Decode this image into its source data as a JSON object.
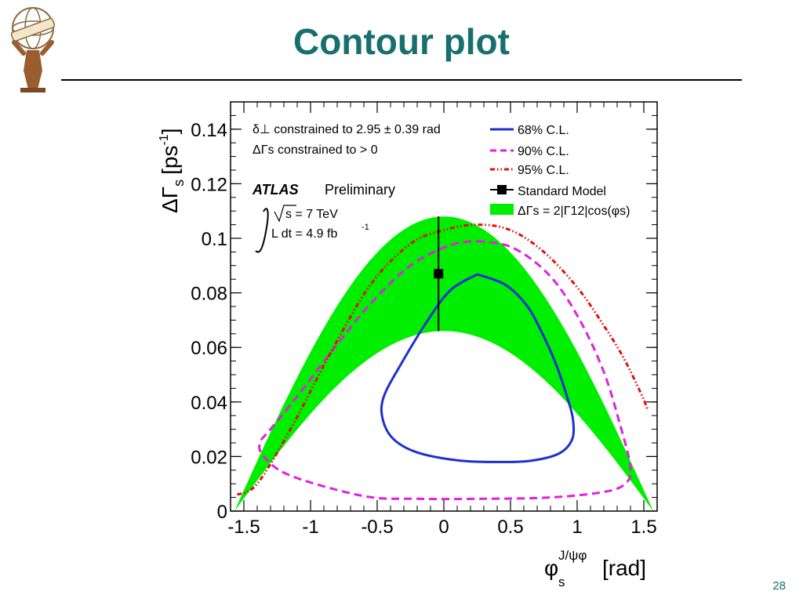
{
  "slide": {
    "title": "Contour plot",
    "page_number": "28",
    "logo_text": "ATLAS"
  },
  "chart_data": {
    "type": "line",
    "xlim": [
      -1.6,
      1.6
    ],
    "ylim": [
      0,
      0.15
    ],
    "x_ticks": [
      "-1.5",
      "-1",
      "-0.5",
      "0",
      "0.5",
      "1",
      "1.5"
    ],
    "x_tick_values": [
      -1.5,
      -1,
      -0.5,
      0,
      0.5,
      1,
      1.5
    ],
    "y_ticks": [
      "0",
      "0.02",
      "0.04",
      "0.06",
      "0.08",
      "0.1",
      "0.12",
      "0.14"
    ],
    "y_tick_values": [
      0,
      0.02,
      0.04,
      0.06,
      0.08,
      0.1,
      0.12,
      0.14
    ],
    "xlabel": {
      "main": "φ",
      "sup": "J/ψφ",
      "sub": "s",
      "unit": "[rad]"
    },
    "ylabel": {
      "main": "ΔΓ",
      "sub": "s",
      "unit": "[ps",
      "unit_sup": "-1",
      "close": "]"
    },
    "annotations": {
      "delta_line": "δ⊥ constrained to 2.95 ± 0.39 rad",
      "dg_line": "ΔΓs constrained to > 0",
      "atlas": "ATLAS",
      "preliminary": "Preliminary",
      "sqrt_s": "s = 7 TeV",
      "lumi": "L dt = 4.9 fb",
      "lumi_sup": "-1"
    },
    "legend": {
      "placement": "top-right",
      "entries": [
        "68% C.L.",
        "90% C.L.",
        "95% C.L.",
        "Standard Model",
        "ΔΓs = 2|Γ12|cos(φs)"
      ]
    },
    "band": {
      "name": "ΔΓs = 2|Γ12|cos(φs)",
      "color": "#00ee00",
      "upper_amplitude": 0.108,
      "lower_amplitude": 0.066,
      "x_range": [
        -1.5708,
        1.5708
      ]
    },
    "standard_model": {
      "x": -0.04,
      "y": 0.087,
      "yerr_low": 0.066,
      "yerr_high": 0.108
    },
    "series": [
      {
        "name": "68% C.L.",
        "color": "#1f2fd0",
        "style": "solid",
        "x": [
          0.25,
          0.46,
          0.62,
          0.73,
          0.84,
          0.93,
          0.97,
          0.96,
          0.86,
          0.66,
          0.44,
          0.12,
          -0.2,
          -0.38,
          -0.46,
          -0.45,
          -0.32,
          -0.12,
          0.05,
          0.25
        ],
        "y": [
          0.0868,
          0.083,
          0.0755,
          0.066,
          0.054,
          0.041,
          0.033,
          0.026,
          0.021,
          0.0185,
          0.018,
          0.0185,
          0.0215,
          0.0265,
          0.034,
          0.042,
          0.054,
          0.07,
          0.081,
          0.0868
        ]
      },
      {
        "name": "90% C.L.",
        "color": "#e020e0",
        "style": "dashed",
        "x": [
          0.25,
          0.52,
          0.8,
          1.02,
          1.2,
          1.32,
          1.4,
          1.36,
          1.2,
          0.8,
          0.3,
          -0.2,
          -0.6,
          -1.15,
          -1.35,
          -1.38,
          -1.3,
          -1.1,
          -0.85,
          -0.55,
          -0.25,
          0.05,
          0.25
        ],
        "y": [
          0.099,
          0.0965,
          0.086,
          0.07,
          0.051,
          0.032,
          0.016,
          0.01,
          0.007,
          0.005,
          0.0045,
          0.0045,
          0.0055,
          0.013,
          0.02,
          0.025,
          0.03,
          0.042,
          0.058,
          0.076,
          0.09,
          0.0975,
          0.099
        ]
      },
      {
        "name": "95% C.L.",
        "color": "#e01010",
        "style": "dashdot",
        "x": [
          -1.55,
          -1.4,
          -1.15,
          -0.85,
          -0.55,
          -0.25,
          0.0,
          0.25,
          0.5,
          0.75,
          1.0,
          1.2,
          1.35,
          1.48,
          1.53
        ],
        "y": [
          0.006,
          0.01,
          0.03,
          0.058,
          0.083,
          0.098,
          0.103,
          0.105,
          0.103,
          0.095,
          0.082,
          0.068,
          0.056,
          0.043,
          0.037
        ]
      }
    ]
  }
}
